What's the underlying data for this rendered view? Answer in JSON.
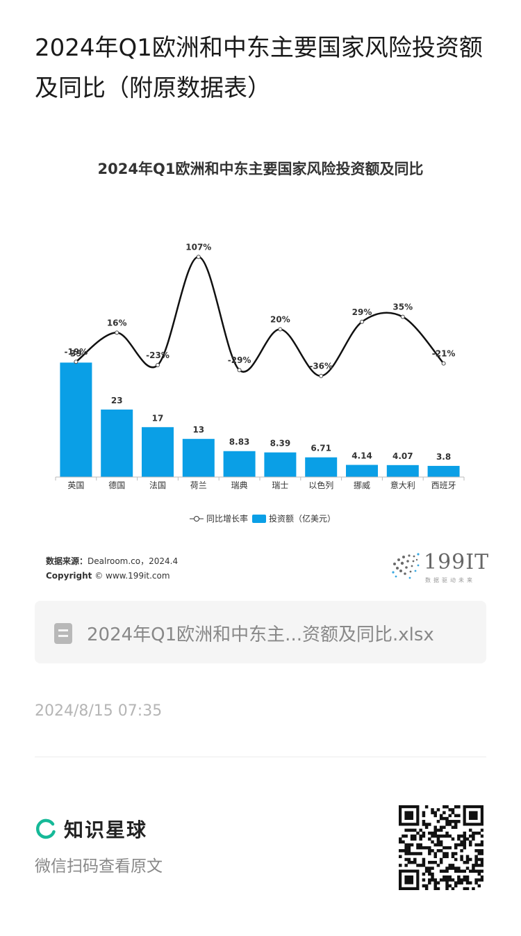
{
  "article": {
    "title": "2024年Q1欧洲和中东主要国家风险投资额及同比（附原数据表）"
  },
  "chart_card": {
    "source_label": "数据来源：",
    "source_value": "Dealroom.co，2024.4",
    "copyright_label": "Copyright",
    "copyright_value": "© www.199it.com",
    "logo_text": "199IT",
    "logo_sub": "数据驱动未来"
  },
  "chart_data": {
    "type": "bar",
    "title": "2024年Q1欧洲和中东主要国家风险投资额及同比",
    "categories": [
      "英国",
      "德国",
      "法国",
      "荷兰",
      "瑞典",
      "瑞士",
      "以色列",
      "挪威",
      "意大利",
      "西班牙"
    ],
    "series": [
      {
        "name": "投资额（亿美元）",
        "type": "bar",
        "values": [
          39,
          23,
          17,
          13,
          8.83,
          8.39,
          6.71,
          4.14,
          4.07,
          3.8
        ],
        "labels": [
          "39",
          "23",
          "17",
          "13",
          "8.83",
          "8.39",
          "6.71",
          "4.14",
          "4.07",
          "3.8"
        ],
        "color": "#0a9fe6"
      },
      {
        "name": "同比增长率",
        "type": "line",
        "values": [
          -19,
          16,
          -23,
          107,
          -29,
          20,
          -36,
          29,
          35,
          -21
        ],
        "labels": [
          "-19%",
          "16%",
          "-23%",
          "107%",
          "-29%",
          "20%",
          "-36%",
          "29%",
          "35%",
          "-21%"
        ],
        "color": "#111111"
      }
    ],
    "legend": [
      "同比增长率",
      "投资额（亿美元）"
    ],
    "legend_position": "bottom",
    "grid": false
  },
  "file": {
    "name": "2024年Q1欧洲和中东主...资额及同比.xlsx",
    "icon": "spreadsheet-file-icon"
  },
  "timestamp": "2024/8/15 07:35",
  "footer": {
    "brand_name": "知识星球",
    "brand_color": "#16b998",
    "scan_hint": "微信扫码查看原文"
  }
}
